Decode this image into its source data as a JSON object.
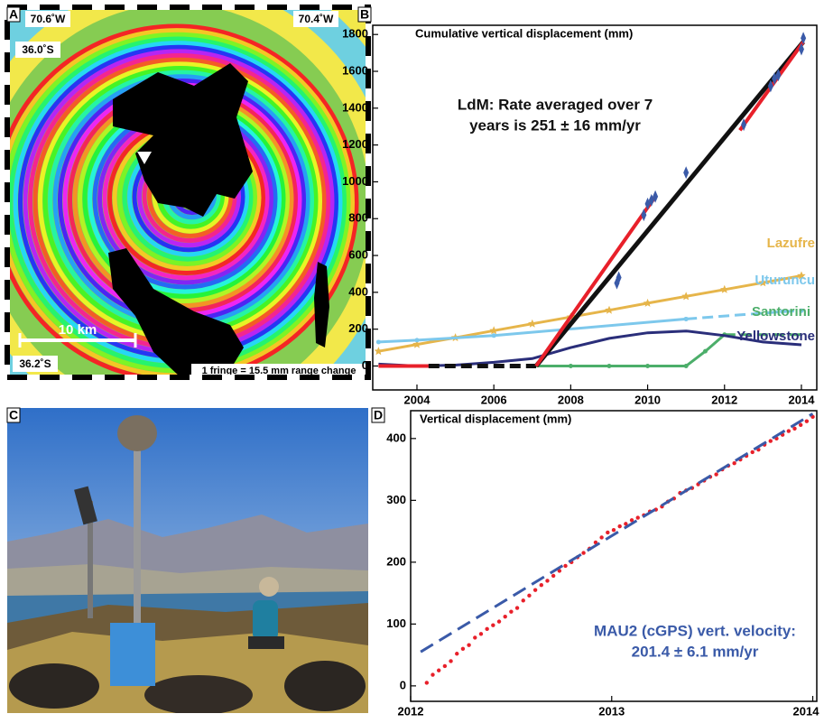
{
  "panel_labels": [
    "A",
    "B",
    "C",
    "D"
  ],
  "map": {
    "lon": [
      "70.6˚W",
      "70.4˚W"
    ],
    "lat": [
      "36.0˚S",
      "36.2˚S"
    ],
    "scale": "10 km",
    "fringe": "1 fringe = 15.5 mm range change"
  },
  "chart_data": [
    {
      "type": "line",
      "title": "Cumulative vertical displacement (mm)",
      "annotation": [
        "LdM: Rate averaged over 7",
        "years is 251 ± 16 mm/yr"
      ],
      "xlim": [
        2002.85,
        2014.4
      ],
      "xticks": [
        2004,
        2006,
        2008,
        2010,
        2012,
        2014
      ],
      "ylim": [
        -130,
        1850
      ],
      "yticks": [
        0,
        200,
        400,
        600,
        800,
        1000,
        1200,
        1400,
        1600,
        1800
      ],
      "series": [
        {
          "name": "Lazufre",
          "color": "#e6b54a",
          "marker": "star",
          "x": [
            2003,
            2004,
            2005,
            2006,
            2007,
            2008,
            2009,
            2010,
            2011,
            2012,
            2013,
            2014
          ],
          "values": [
            80,
            117,
            154,
            192,
            229,
            266,
            303,
            341,
            378,
            415,
            452,
            490
          ]
        },
        {
          "name": "Uturuncu",
          "color": "#7dc8ec",
          "marker": "dot",
          "x": [
            2003,
            2004,
            2006,
            2011
          ],
          "values": [
            130,
            140,
            165,
            255
          ]
        },
        {
          "color": "#7dc8ec",
          "dashed": true,
          "marker": "dot",
          "x": [
            2011,
            2013.5,
            2014
          ],
          "values": [
            255,
            295,
            300
          ]
        },
        {
          "name": "Santorini",
          "color": "#4cae6a",
          "marker": "dot",
          "x": [
            2007,
            2008,
            2009,
            2010,
            2011,
            2011.5,
            2012
          ],
          "values": [
            0,
            0,
            0,
            0,
            0,
            80,
            170
          ]
        },
        {
          "color": "#4cae6a",
          "dashed": true,
          "x": [
            2012,
            2014
          ],
          "values": [
            170,
            170
          ]
        },
        {
          "name": "Yellowstone",
          "color": "#2a2e7a",
          "x": [
            2003,
            2004,
            2005,
            2006,
            2007,
            2008,
            2009,
            2010,
            2011,
            2012,
            2013,
            2014
          ],
          "values": [
            10,
            0,
            5,
            20,
            40,
            100,
            150,
            180,
            190,
            165,
            130,
            115
          ]
        },
        {
          "color": "#111111",
          "dashed": true,
          "x": [
            2004.3,
            2007.1
          ],
          "values": [
            0,
            0
          ]
        },
        {
          "color": "#111111",
          "x": [
            2007.1,
            2014.05
          ],
          "values": [
            0,
            1760
          ]
        },
        {
          "color": "#e8202a",
          "x": [
            2003,
            2004.3
          ],
          "values": [
            0,
            0
          ]
        },
        {
          "color": "#e8202a",
          "x": [
            2007.1,
            2010.2
          ],
          "values": [
            0,
            920
          ]
        },
        {
          "color": "#e8202a",
          "x": [
            2012.4,
            2014.05
          ],
          "values": [
            1280,
            1760
          ]
        },
        {
          "color": "#3a5aa8",
          "line": false,
          "marker": "diamond",
          "x": [
            2009.2,
            2009.25,
            2009.9,
            2010.0,
            2010.1,
            2010.2,
            2011.0,
            2012.5,
            2013.2,
            2013.3,
            2013.4,
            2014.0,
            2014.05
          ],
          "values": [
            450,
            480,
            820,
            880,
            900,
            920,
            1050,
            1310,
            1520,
            1560,
            1580,
            1720,
            1780
          ]
        }
      ]
    },
    {
      "type": "scatter",
      "title": "Vertical displacement (mm)",
      "annotation": [
        "MAU2 (cGPS) vert. velocity:",
        "201.4 ± 6.1 mm/yr"
      ],
      "annotation_color": "#3a5aa8",
      "xlim": [
        2012,
        2014.02
      ],
      "xticks": [
        2012,
        2013,
        2014
      ],
      "ylim": [
        -25,
        445
      ],
      "yticks": [
        0,
        100,
        200,
        300,
        400
      ],
      "series": [
        {
          "color": "#e8202a",
          "line": false,
          "marker": "dot",
          "x": [
            2012.08,
            2012.11,
            2012.14,
            2012.17,
            2012.2,
            2012.23,
            2012.26,
            2012.29,
            2012.32,
            2012.35,
            2012.38,
            2012.41,
            2012.44,
            2012.47,
            2012.5,
            2012.53,
            2012.56,
            2012.59,
            2012.62,
            2012.65,
            2012.68,
            2012.71,
            2012.74,
            2012.77,
            2012.8,
            2012.83,
            2012.86,
            2012.89,
            2012.92,
            2012.95,
            2012.98,
            2013.01,
            2013.04,
            2013.07,
            2013.1,
            2013.13,
            2013.16,
            2013.19,
            2013.22,
            2013.25,
            2013.28,
            2013.31,
            2013.34,
            2013.37,
            2013.4,
            2013.43,
            2013.46,
            2013.49,
            2013.52,
            2013.55,
            2013.58,
            2013.61,
            2013.64,
            2013.67,
            2013.7,
            2013.73,
            2013.76,
            2013.79,
            2013.82,
            2013.85,
            2013.88,
            2013.91,
            2013.94,
            2013.97,
            2014.0
          ],
          "values": [
            5,
            18,
            25,
            32,
            40,
            52,
            60,
            66,
            78,
            84,
            92,
            98,
            104,
            112,
            120,
            126,
            138,
            146,
            155,
            163,
            170,
            178,
            186,
            194,
            200,
            208,
            215,
            222,
            232,
            240,
            248,
            252,
            258,
            262,
            268,
            272,
            276,
            282,
            285,
            290,
            298,
            303,
            312,
            316,
            320,
            326,
            332,
            338,
            342,
            350,
            356,
            360,
            366,
            372,
            378,
            382,
            390,
            396,
            400,
            406,
            412,
            416,
            422,
            428,
            435
          ]
        },
        {
          "color": "#3a5aa8",
          "dashed": true,
          "x": [
            2012.05,
            2014.0
          ],
          "values": [
            55,
            440
          ]
        }
      ]
    }
  ]
}
